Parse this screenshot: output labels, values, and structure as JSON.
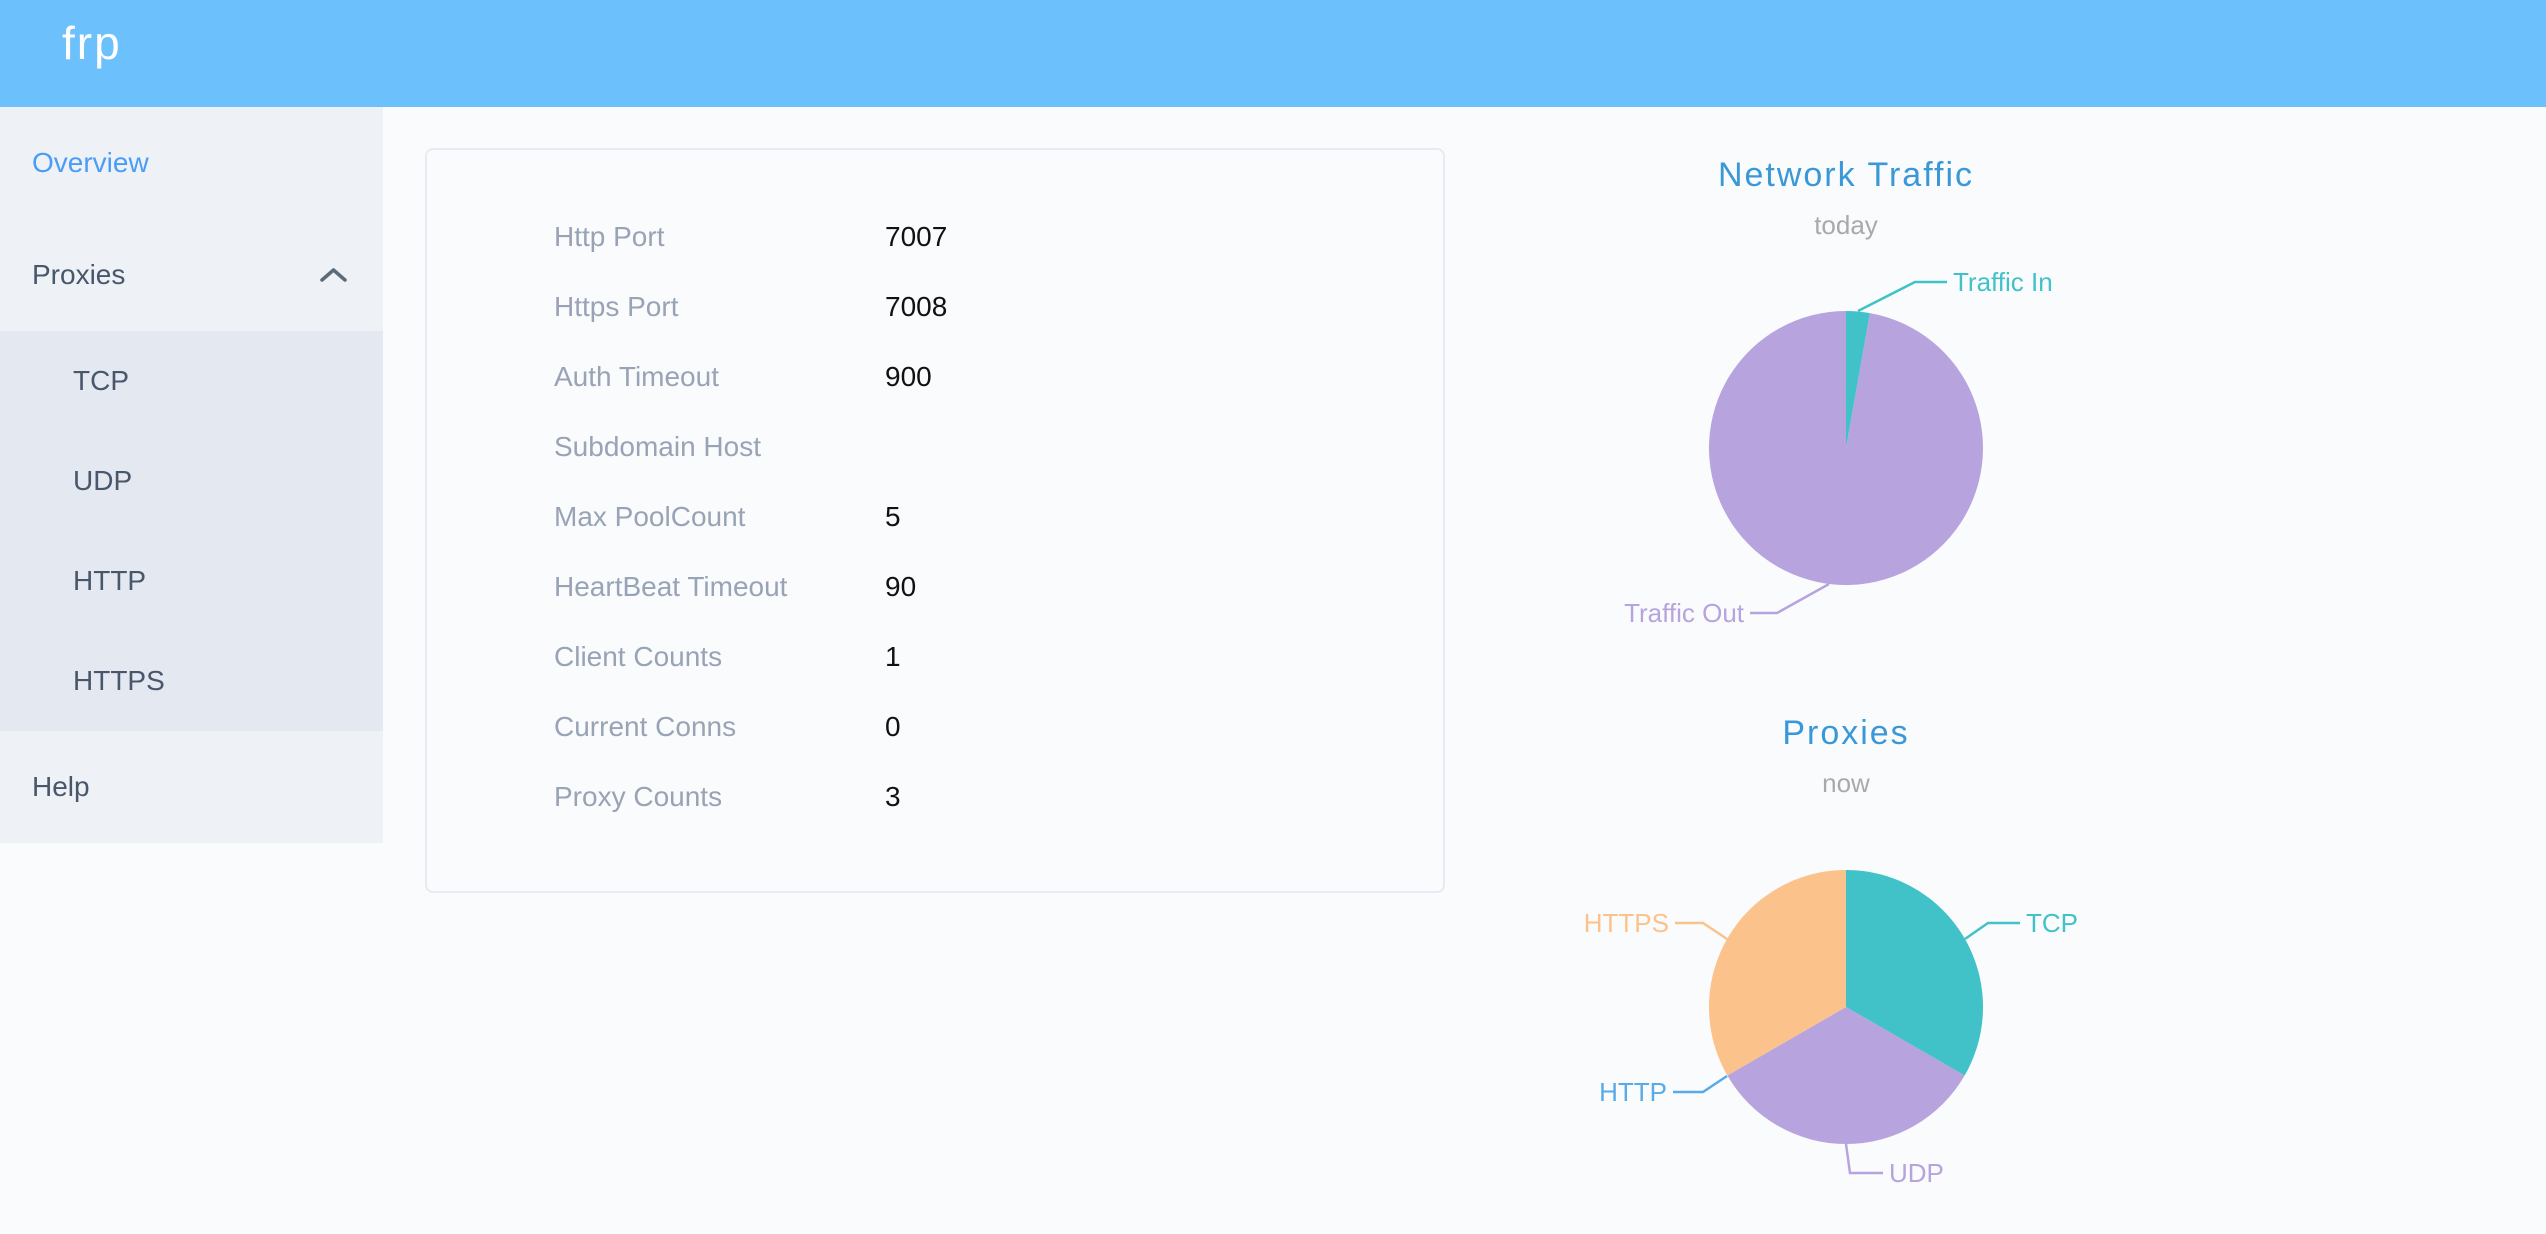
{
  "header": {
    "logo": "frp"
  },
  "sidebar": {
    "items": [
      {
        "label": "Overview",
        "active": true
      },
      {
        "label": "Proxies",
        "expanded": true
      }
    ],
    "submenu": [
      "TCP",
      "UDP",
      "HTTP",
      "HTTPS"
    ],
    "help_label": "Help"
  },
  "server_info": {
    "rows": [
      {
        "label": "Http Port",
        "value": "7007"
      },
      {
        "label": "Https Port",
        "value": "7008"
      },
      {
        "label": "Auth Timeout",
        "value": "900"
      },
      {
        "label": "Subdomain Host",
        "value": ""
      },
      {
        "label": "Max PoolCount",
        "value": "5"
      },
      {
        "label": "HeartBeat Timeout",
        "value": "90"
      },
      {
        "label": "Client Counts",
        "value": "1"
      },
      {
        "label": "Current Conns",
        "value": "0"
      },
      {
        "label": "Proxy Counts",
        "value": "3"
      }
    ]
  },
  "chart_data": [
    {
      "type": "pie",
      "title": "Network Traffic",
      "subtitle": "today",
      "value_unit": "%",
      "series": [
        {
          "name": "Traffic In",
          "value": 2.8,
          "color": "#41c2c8"
        },
        {
          "name": "Traffic Out",
          "value": 97.2,
          "color": "#b7a3de"
        }
      ]
    },
    {
      "type": "pie",
      "title": "Proxies",
      "subtitle": "now",
      "value_unit": "count",
      "series": [
        {
          "name": "TCP",
          "value": 1,
          "color": "#41c2c8"
        },
        {
          "name": "UDP",
          "value": 1,
          "color": "#b7a3de"
        },
        {
          "name": "HTTP",
          "value": 0,
          "color": "#58aae8"
        },
        {
          "name": "HTTPS",
          "value": 1,
          "color": "#fbc28c"
        }
      ]
    }
  ],
  "colors": {
    "page_bg": "#fafbfc",
    "header_bg": "#6cc0fb",
    "sidebar_bg": "#eef1f6",
    "submenu_bg": "#e4e8f1",
    "menu_text": "#48576a",
    "active_menu_text": "#499df7",
    "card_border": "#e6eaf3",
    "label_text": "#98a3b6",
    "value_text": "#111111",
    "chart_title": "#3a98d8",
    "chart_subtitle": "#a9a9a9"
  }
}
